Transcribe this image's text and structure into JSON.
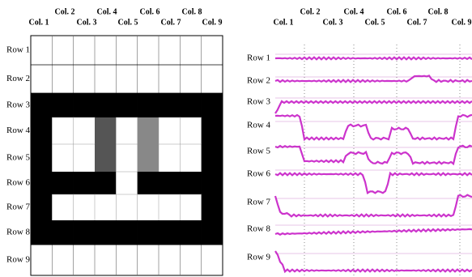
{
  "left_panel": {
    "column_labels": [
      "Col. 1",
      "Col. 2",
      "Col. 3",
      "Col. 4",
      "Col. 5",
      "Col. 6",
      "Col. 7",
      "Col. 8",
      "Col. 9"
    ],
    "row_labels": [
      "Row 1",
      "Row 2",
      "Row 3",
      "Row 4",
      "Row 5",
      "Row 6",
      "Row 7",
      "Row 8",
      "Row 9"
    ]
  },
  "right_panel": {
    "column_labels": [
      "Col. 1",
      "Col. 2",
      "Col. 3",
      "Col. 4",
      "Col. 5",
      "Col. 6",
      "Col. 7",
      "Col. 8",
      "Col. 9"
    ],
    "row_labels": [
      "Row 1",
      "Row 2",
      "Row 3",
      "Row 4",
      "Row 5",
      "Row 6",
      "Row 7",
      "Row 8",
      "Row 9"
    ]
  }
}
